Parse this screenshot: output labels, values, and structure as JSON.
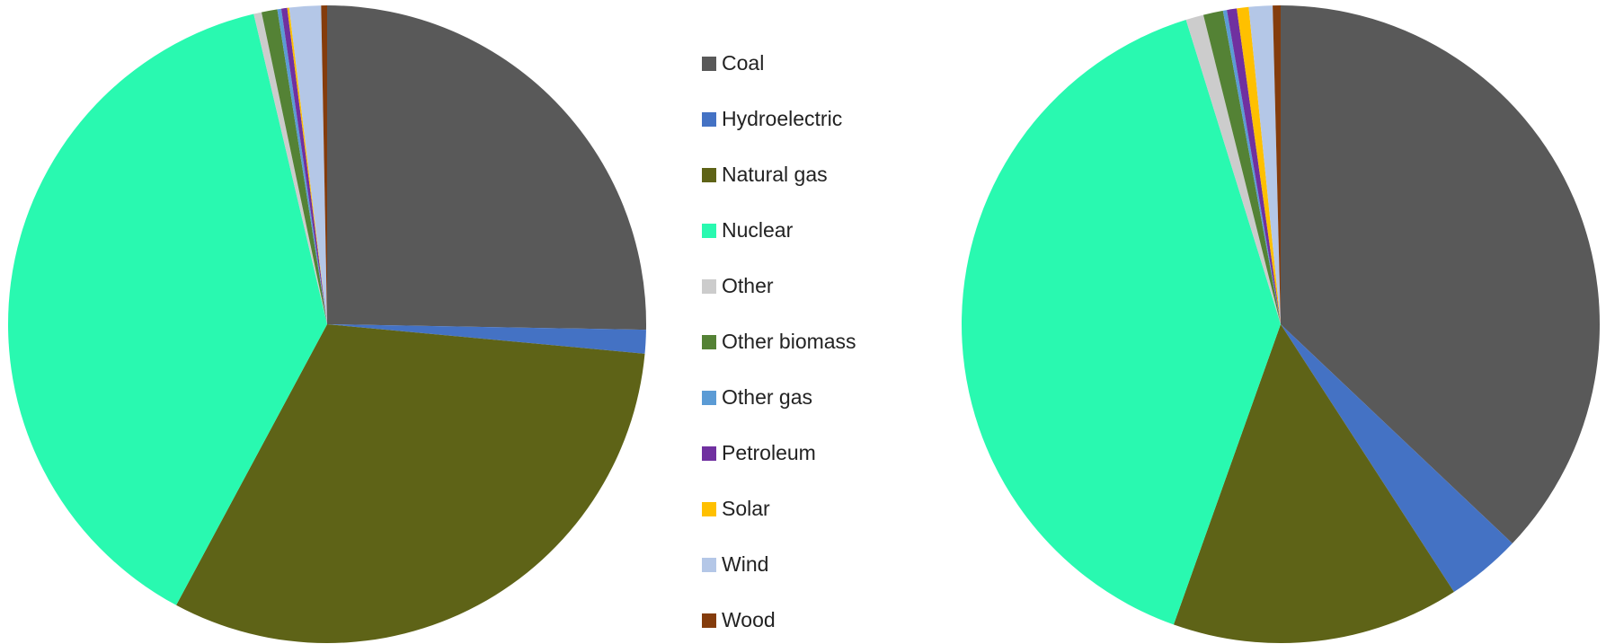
{
  "chart_data": [
    {
      "type": "pie",
      "categories": [
        "Coal",
        "Hydroelectric",
        "Natural gas",
        "Nuclear",
        "Other",
        "Other biomass",
        "Other gas",
        "Petroleum",
        "Solar",
        "Wind",
        "Wood"
      ],
      "values": [
        25.3,
        1.2,
        31.4,
        38.5,
        0.4,
        0.8,
        0.2,
        0.3,
        0.1,
        1.6,
        0.3
      ],
      "colors": [
        "#595959",
        "#4472c4",
        "#5e6317",
        "#29f9b0",
        "#cccccc",
        "#548235",
        "#5b9bd5",
        "#7030a0",
        "#ffc000",
        "#b4c7e7",
        "#843c0c"
      ]
    },
    {
      "type": "pie",
      "categories": [
        "Coal",
        "Hydroelectric",
        "Natural gas",
        "Nuclear",
        "Other",
        "Other biomass",
        "Other gas",
        "Petroleum",
        "Solar",
        "Wind",
        "Wood"
      ],
      "values": [
        37.1,
        3.8,
        14.6,
        39.8,
        0.9,
        1.0,
        0.2,
        0.5,
        0.6,
        1.2,
        0.4
      ],
      "colors": [
        "#595959",
        "#4472c4",
        "#5e6317",
        "#29f9b0",
        "#cccccc",
        "#548235",
        "#5b9bd5",
        "#7030a0",
        "#ffc000",
        "#b4c7e7",
        "#843c0c"
      ]
    }
  ]
}
